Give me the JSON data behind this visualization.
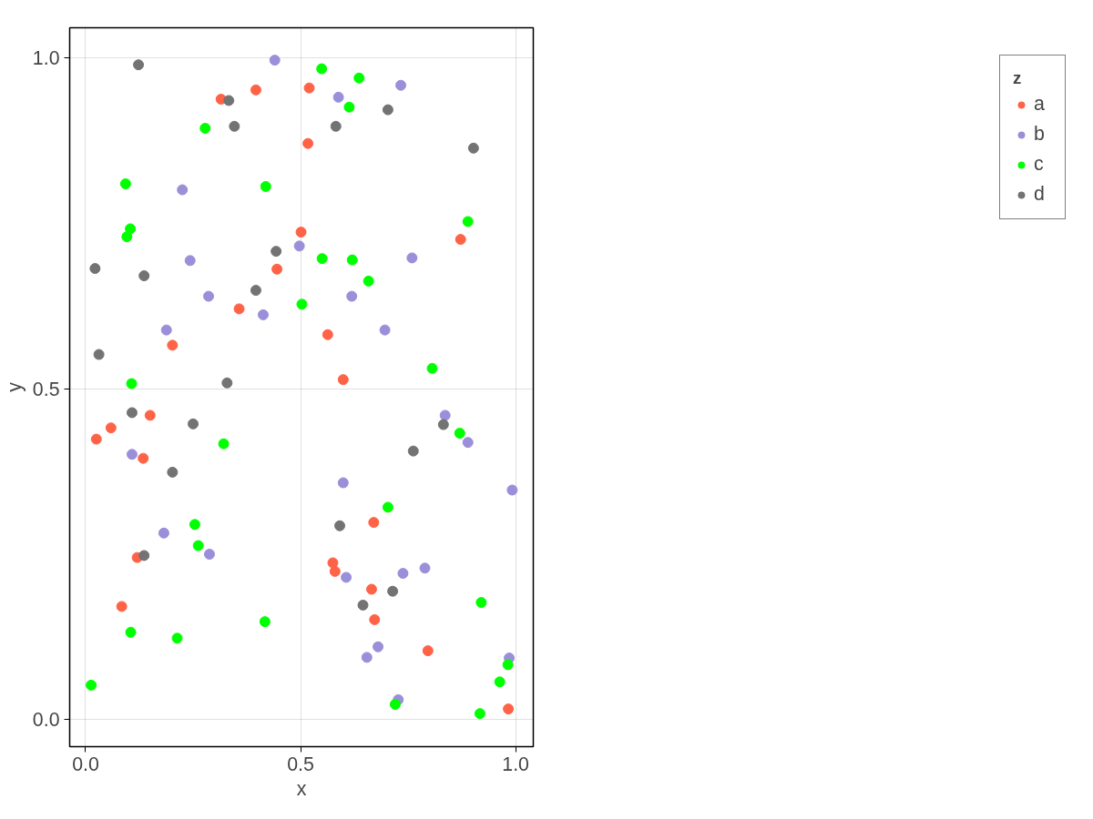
{
  "chart_data": {
    "type": "scatter",
    "xlabel": "x",
    "ylabel": "y",
    "legend_title": "z",
    "xlim": [
      -0.037,
      1.041
    ],
    "ylim": [
      -0.041,
      1.046
    ],
    "xticks": [
      {
        "value": 0,
        "label": "0.0"
      },
      0.5,
      {
        "value": 1,
        "label": "1.0"
      }
    ],
    "yticks": [
      {
        "value": 0,
        "label": "0.0"
      },
      0.5,
      {
        "value": 1,
        "label": "1.0"
      }
    ],
    "grid": true,
    "legend": "right",
    "marker": "circle",
    "series": [
      {
        "name": "a",
        "color": "#ff6347",
        "x": [
          0.025,
          0.059,
          0.084,
          0.12,
          0.134,
          0.15,
          0.202,
          0.315,
          0.357,
          0.396,
          0.445,
          0.501,
          0.517,
          0.52,
          0.563,
          0.575,
          0.58,
          0.599,
          0.665,
          0.672,
          0.67,
          0.796,
          0.872,
          0.983
        ],
        "values": [
          0.424,
          0.441,
          0.171,
          0.245,
          0.395,
          0.46,
          0.566,
          0.938,
          0.621,
          0.952,
          0.681,
          0.737,
          0.871,
          0.955,
          0.582,
          0.237,
          0.224,
          0.514,
          0.197,
          0.151,
          0.298,
          0.104,
          0.726,
          0.016
        ]
      },
      {
        "name": "b",
        "color": "#9a8fd9",
        "x": [
          0.44,
          0.588,
          0.733,
          0.225,
          0.243,
          0.286,
          0.413,
          0.497,
          0.619,
          0.696,
          0.759,
          0.188,
          0.108,
          0.182,
          0.288,
          0.599,
          0.606,
          0.654,
          0.68,
          0.738,
          0.789,
          0.836,
          0.889,
          0.992,
          0.727,
          0.985
        ],
        "values": [
          0.997,
          0.941,
          0.959,
          0.801,
          0.694,
          0.64,
          0.612,
          0.716,
          0.64,
          0.589,
          0.698,
          0.589,
          0.401,
          0.282,
          0.25,
          0.358,
          0.215,
          0.094,
          0.11,
          0.221,
          0.229,
          0.46,
          0.419,
          0.347,
          0.03,
          0.093
        ]
      },
      {
        "name": "c",
        "color": "#00ff00",
        "x": [
          0.549,
          0.636,
          0.613,
          0.278,
          0.093,
          0.419,
          0.104,
          0.096,
          0.55,
          0.62,
          0.658,
          0.503,
          0.806,
          0.889,
          0.107,
          0.321,
          0.87,
          0.703,
          0.254,
          0.262,
          0.417,
          0.213,
          0.105,
          0.013,
          0.72,
          0.92,
          0.963,
          0.982,
          0.917
        ],
        "values": [
          0.984,
          0.97,
          0.926,
          0.894,
          0.81,
          0.806,
          0.742,
          0.73,
          0.697,
          0.695,
          0.663,
          0.628,
          0.531,
          0.753,
          0.508,
          0.417,
          0.433,
          0.321,
          0.295,
          0.263,
          0.148,
          0.123,
          0.132,
          0.052,
          0.023,
          0.177,
          0.057,
          0.083,
          0.009
        ]
      },
      {
        "name": "d",
        "color": "#737373",
        "x": [
          0.123,
          0.333,
          0.346,
          0.582,
          0.703,
          0.902,
          0.443,
          0.396,
          0.022,
          0.136,
          0.031,
          0.329,
          0.108,
          0.25,
          0.832,
          0.762,
          0.202,
          0.591,
          0.136,
          0.645,
          0.714
        ],
        "values": [
          0.99,
          0.936,
          0.897,
          0.897,
          0.922,
          0.864,
          0.708,
          0.649,
          0.682,
          0.671,
          0.552,
          0.509,
          0.464,
          0.447,
          0.446,
          0.406,
          0.374,
          0.293,
          0.248,
          0.173,
          0.194
        ]
      }
    ]
  }
}
